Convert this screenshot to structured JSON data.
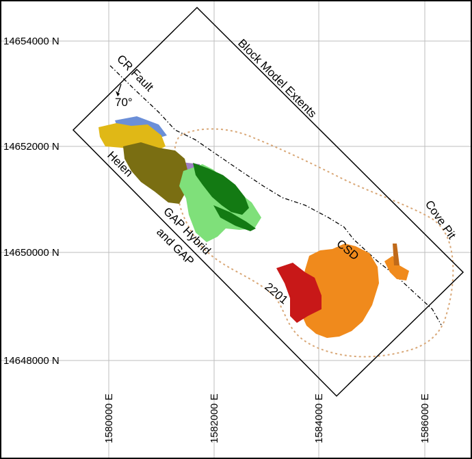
{
  "northing_labels": [
    "14654000 N",
    "14652000 N",
    "14650000 N",
    "14648000 N"
  ],
  "easting_labels": [
    "1580000 E",
    "1582000 E",
    "1584000 E",
    "1586000 E"
  ],
  "annotations": {
    "block_model": "Block Model Extents",
    "cr_fault": "CR Fault",
    "dip": "70°",
    "helen": "Helen",
    "gap_line1": "GAP Hybrid",
    "gap_line2": "and GAP",
    "csd": "CSD",
    "z2201": "2201",
    "cove_pit": "Cove Pit"
  },
  "colors": {
    "helen": "#7a6e12",
    "helen_top": "#e0b816",
    "blue": "#6b8fd8",
    "purple": "#9f7fc4",
    "gap_light": "#7fe07a",
    "gap_dark": "#137a13",
    "csd": "#f08a1c",
    "z2201": "#c81818",
    "pit_outline": "#d9a878",
    "grid": "#bdbdbd"
  }
}
